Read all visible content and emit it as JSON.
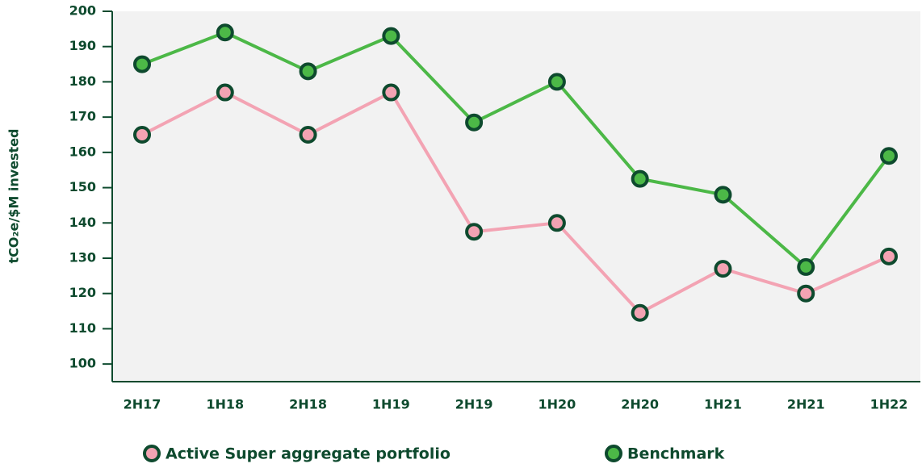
{
  "chart_data": {
    "type": "line",
    "y_label": "tCO₂e/$M invested",
    "categories": [
      "2H17",
      "1H18",
      "2H18",
      "1H19",
      "2H19",
      "1H20",
      "2H20",
      "1H21",
      "2H21",
      "1H22"
    ],
    "series": [
      {
        "name": "Active Super aggregate portfolio",
        "color": "#f3a3b3",
        "values": [
          165,
          177,
          165,
          177,
          137.5,
          140,
          114.5,
          127,
          120,
          130.5
        ]
      },
      {
        "name": "Benchmark",
        "color": "#4cb847",
        "values": [
          185,
          194,
          183,
          193,
          168.5,
          180,
          152.5,
          148,
          127.5,
          159
        ]
      }
    ],
    "ylim": [
      95,
      200
    ],
    "yticks": [
      100,
      110,
      120,
      130,
      140,
      150,
      160,
      170,
      180,
      190,
      200
    ]
  }
}
